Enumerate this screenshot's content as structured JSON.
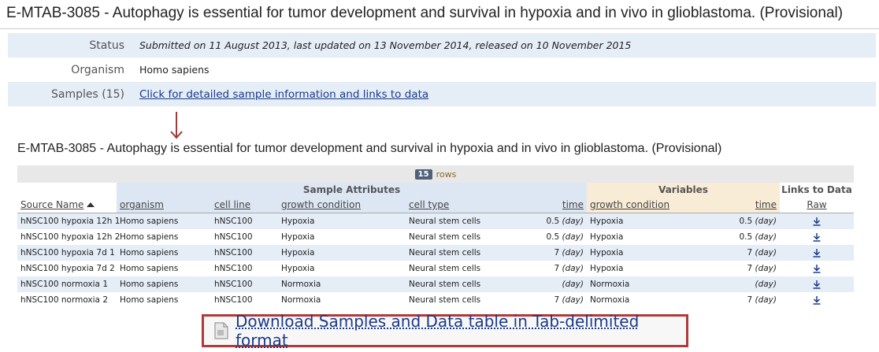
{
  "page_title": "E-MTAB-3085 - Autophagy is essential for tumor development and survival in hypoxia and in vivo in glioblastoma. (Provisional)",
  "info": {
    "status_label": "Status",
    "status_value": "Submitted on 11 August 2013, last updated on 13 November 2014, released on 10 November 2015",
    "organism_label": "Organism",
    "organism_value": "Homo sapiens",
    "samples_label": "Samples (15)",
    "samples_link": "Click for detailed sample information and links to data"
  },
  "table_title": "E-MTAB-3085 - Autophagy is essential for tumor development and survival in hypoxia and in vivo in glioblastoma. (Provisional)",
  "rows_count": "15",
  "rows_label": "rows",
  "groups": {
    "sample_attributes": "Sample Attributes",
    "variables": "Variables",
    "links": "Links to Data"
  },
  "columns": [
    "Source Name",
    "organism",
    "cell line",
    "growth condition",
    "cell type",
    "time",
    "growth condition",
    "time",
    "Raw"
  ],
  "rows": [
    {
      "source": "hNSC100 hypoxia 12h 1",
      "organism": "Homo sapiens",
      "cell_line": "hNSC100",
      "growth": "Hypoxia",
      "cell_type": "Neural stem cells",
      "time_num": "0.5",
      "time_unit": "(day)",
      "var_growth": "Hypoxia",
      "var_time_num": "0.5",
      "var_time_unit": "(day)"
    },
    {
      "source": "hNSC100 hypoxia 12h 2",
      "organism": "Homo sapiens",
      "cell_line": "hNSC100",
      "growth": "Hypoxia",
      "cell_type": "Neural stem cells",
      "time_num": "0.5",
      "time_unit": "(day)",
      "var_growth": "Hypoxia",
      "var_time_num": "0.5",
      "var_time_unit": "(day)"
    },
    {
      "source": "hNSC100 hypoxia 7d 1",
      "organism": "Homo sapiens",
      "cell_line": "hNSC100",
      "growth": "Hypoxia",
      "cell_type": "Neural stem cells",
      "time_num": "7",
      "time_unit": "(day)",
      "var_growth": "Hypoxia",
      "var_time_num": "7",
      "var_time_unit": "(day)"
    },
    {
      "source": "hNSC100 hypoxia 7d 2",
      "organism": "Homo sapiens",
      "cell_line": "hNSC100",
      "growth": "Hypoxia",
      "cell_type": "Neural stem cells",
      "time_num": "7",
      "time_unit": "(day)",
      "var_growth": "Hypoxia",
      "var_time_num": "7",
      "var_time_unit": "(day)"
    },
    {
      "source": "hNSC100 normoxia 1",
      "organism": "Homo sapiens",
      "cell_line": "hNSC100",
      "growth": "Normoxia",
      "cell_type": "Neural stem cells",
      "time_num": "",
      "time_unit": "(day)",
      "var_growth": "Normoxia",
      "var_time_num": "",
      "var_time_unit": "(day)"
    },
    {
      "source": "hNSC100 normoxia 2",
      "organism": "Homo sapiens",
      "cell_line": "hNSC100",
      "growth": "Normoxia",
      "cell_type": "Neural stem cells",
      "time_num": "7",
      "time_unit": "(day)",
      "var_growth": "Normoxia",
      "var_time_num": "7",
      "var_time_unit": "(day)"
    }
  ],
  "download_label": "Download Samples and Data table in Tab-delimited format",
  "colors": {
    "link": "#1a3a8a",
    "row_shade": "#e5edf7",
    "attributes_header": "#dde7f4",
    "variables_header": "#f8ecd6",
    "highlight_border": "#b03a3a"
  }
}
